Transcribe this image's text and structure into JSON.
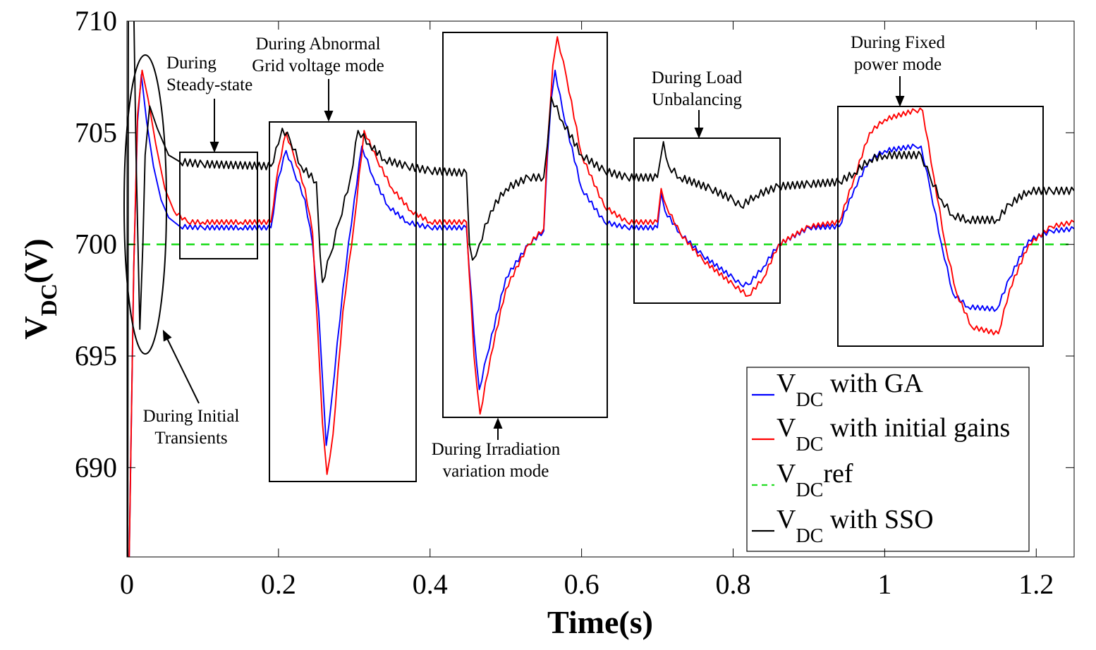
{
  "chart_data": {
    "type": "line",
    "title": "",
    "xlabel": "Time(s)",
    "ylabel": {
      "main": "V",
      "sub": "DC",
      "suffix": "(V)"
    },
    "xlim": [
      0,
      1.25
    ],
    "ylim": [
      686,
      710
    ],
    "xticks": [
      0,
      0.2,
      0.4,
      0.6,
      0.8,
      1,
      1.2
    ],
    "xtick_labels": [
      "0",
      "0.2",
      "0.4",
      "0.6",
      "0.8",
      "1",
      "1.2"
    ],
    "yticks": [
      690,
      695,
      700,
      705,
      710
    ],
    "ytick_labels": [
      "690",
      "695",
      "700",
      "705",
      "710"
    ],
    "grid": false,
    "legend_position": "bottom-right",
    "legend": [
      {
        "key": "ga",
        "main": "V",
        "sub": "DC",
        "rest": " with GA"
      },
      {
        "key": "init",
        "main": "V",
        "sub": "DC",
        "rest": " with initial gains"
      },
      {
        "key": "ref",
        "main": "V",
        "sub": "DC",
        "rest": "ref"
      },
      {
        "key": "sso",
        "main": "V",
        "sub": "DC",
        "rest": " with SSO"
      }
    ],
    "series": [
      {
        "key": "ga",
        "color": "#0000ff",
        "dash": "",
        "ripple": 0.1,
        "points": [
          [
            0,
            686
          ],
          [
            0.003,
            686
          ],
          [
            0.009,
            699
          ],
          [
            0.014,
            705.5
          ],
          [
            0.019,
            707.6
          ],
          [
            0.026,
            705.5
          ],
          [
            0.035,
            703.5
          ],
          [
            0.045,
            702
          ],
          [
            0.055,
            701.2
          ],
          [
            0.07,
            700.8
          ],
          [
            0.1,
            700.75
          ],
          [
            0.15,
            700.75
          ],
          [
            0.19,
            700.75
          ],
          [
            0.2,
            703
          ],
          [
            0.21,
            704.2
          ],
          [
            0.22,
            703.3
          ],
          [
            0.235,
            702
          ],
          [
            0.245,
            700
          ],
          [
            0.253,
            697
          ],
          [
            0.258,
            694
          ],
          [
            0.263,
            691
          ],
          [
            0.27,
            693
          ],
          [
            0.285,
            698
          ],
          [
            0.3,
            702
          ],
          [
            0.31,
            704.4
          ],
          [
            0.325,
            703
          ],
          [
            0.345,
            701.7
          ],
          [
            0.37,
            701
          ],
          [
            0.4,
            700.75
          ],
          [
            0.448,
            700.75
          ],
          [
            0.458,
            696
          ],
          [
            0.465,
            693.5
          ],
          [
            0.475,
            695
          ],
          [
            0.5,
            698.5
          ],
          [
            0.53,
            700
          ],
          [
            0.55,
            700.6
          ],
          [
            0.555,
            704
          ],
          [
            0.56,
            706.5
          ],
          [
            0.565,
            707.8
          ],
          [
            0.575,
            706
          ],
          [
            0.6,
            702.5
          ],
          [
            0.63,
            701
          ],
          [
            0.66,
            700.75
          ],
          [
            0.7,
            700.75
          ],
          [
            0.705,
            702.3
          ],
          [
            0.71,
            701.5
          ],
          [
            0.73,
            700.5
          ],
          [
            0.76,
            699.5
          ],
          [
            0.8,
            698.5
          ],
          [
            0.81,
            698.2
          ],
          [
            0.82,
            698.2
          ],
          [
            0.84,
            699
          ],
          [
            0.86,
            700
          ],
          [
            0.9,
            700.75
          ],
          [
            0.94,
            700.8
          ],
          [
            0.96,
            702.5
          ],
          [
            0.98,
            703.8
          ],
          [
            1,
            704.2
          ],
          [
            1.04,
            704.4
          ],
          [
            1.048,
            704.4
          ],
          [
            1.06,
            702.5
          ],
          [
            1.075,
            700
          ],
          [
            1.09,
            697.8
          ],
          [
            1.11,
            697.2
          ],
          [
            1.148,
            697.1
          ],
          [
            1.165,
            698.5
          ],
          [
            1.19,
            700.2
          ],
          [
            1.22,
            700.6
          ],
          [
            1.25,
            700.7
          ]
        ]
      },
      {
        "key": "init",
        "color": "#ff0000",
        "dash": "",
        "ripple": 0.1,
        "points": [
          [
            0,
            686
          ],
          [
            0.003,
            686
          ],
          [
            0.009,
            699
          ],
          [
            0.014,
            705.8
          ],
          [
            0.02,
            707.8
          ],
          [
            0.028,
            706.5
          ],
          [
            0.038,
            704.5
          ],
          [
            0.05,
            702.5
          ],
          [
            0.062,
            701.5
          ],
          [
            0.08,
            701
          ],
          [
            0.1,
            701
          ],
          [
            0.15,
            701
          ],
          [
            0.19,
            701
          ],
          [
            0.2,
            703.5
          ],
          [
            0.21,
            705
          ],
          [
            0.22,
            704
          ],
          [
            0.235,
            702.5
          ],
          [
            0.245,
            700.5
          ],
          [
            0.252,
            696
          ],
          [
            0.258,
            692
          ],
          [
            0.264,
            689.7
          ],
          [
            0.272,
            691.5
          ],
          [
            0.285,
            697
          ],
          [
            0.3,
            701
          ],
          [
            0.313,
            705.1
          ],
          [
            0.33,
            703.8
          ],
          [
            0.35,
            702.5
          ],
          [
            0.375,
            701.5
          ],
          [
            0.4,
            701
          ],
          [
            0.448,
            701
          ],
          [
            0.458,
            695
          ],
          [
            0.466,
            692.4
          ],
          [
            0.48,
            695
          ],
          [
            0.5,
            698
          ],
          [
            0.53,
            700
          ],
          [
            0.55,
            700.7
          ],
          [
            0.555,
            704.5
          ],
          [
            0.562,
            708
          ],
          [
            0.568,
            709.3
          ],
          [
            0.58,
            707.5
          ],
          [
            0.6,
            704
          ],
          [
            0.63,
            701.7
          ],
          [
            0.66,
            701
          ],
          [
            0.7,
            701
          ],
          [
            0.705,
            702.5
          ],
          [
            0.712,
            701.7
          ],
          [
            0.73,
            700.5
          ],
          [
            0.76,
            699.3
          ],
          [
            0.8,
            698.2
          ],
          [
            0.82,
            697.7
          ],
          [
            0.84,
            698.5
          ],
          [
            0.86,
            700
          ],
          [
            0.9,
            700.8
          ],
          [
            0.94,
            701
          ],
          [
            0.96,
            703
          ],
          [
            0.98,
            705
          ],
          [
            1,
            705.6
          ],
          [
            1.04,
            706
          ],
          [
            1.05,
            706
          ],
          [
            1.065,
            703
          ],
          [
            1.08,
            700
          ],
          [
            1.095,
            697.8
          ],
          [
            1.115,
            696.3
          ],
          [
            1.15,
            696
          ],
          [
            1.165,
            698
          ],
          [
            1.19,
            700
          ],
          [
            1.22,
            700.8
          ],
          [
            1.25,
            701
          ]
        ]
      },
      {
        "key": "ref",
        "color": "#22dd22",
        "dash": "12,9",
        "ripple": 0,
        "points": [
          [
            0,
            700
          ],
          [
            1.25,
            700
          ]
        ]
      },
      {
        "key": "sso",
        "color": "#000000",
        "dash": "",
        "ripple": 0.16,
        "points": [
          [
            0,
            686
          ],
          [
            0.001,
            686
          ],
          [
            0.002,
            715
          ],
          [
            0.007,
            715
          ],
          [
            0.012,
            704
          ],
          [
            0.017,
            696.2
          ],
          [
            0.021,
            700
          ],
          [
            0.024,
            704
          ],
          [
            0.03,
            706.2
          ],
          [
            0.04,
            705.2
          ],
          [
            0.055,
            704
          ],
          [
            0.07,
            703.7
          ],
          [
            0.1,
            703.6
          ],
          [
            0.19,
            703.5
          ],
          [
            0.2,
            704.5
          ],
          [
            0.205,
            705.2
          ],
          [
            0.215,
            704.7
          ],
          [
            0.23,
            703.5
          ],
          [
            0.25,
            702.8
          ],
          [
            0.255,
            699.5
          ],
          [
            0.258,
            698.3
          ],
          [
            0.268,
            699.5
          ],
          [
            0.28,
            701
          ],
          [
            0.295,
            703
          ],
          [
            0.305,
            705.1
          ],
          [
            0.32,
            704.5
          ],
          [
            0.34,
            703.8
          ],
          [
            0.37,
            703.5
          ],
          [
            0.4,
            703.3
          ],
          [
            0.448,
            703.2
          ],
          [
            0.452,
            700
          ],
          [
            0.456,
            699.3
          ],
          [
            0.465,
            700
          ],
          [
            0.48,
            701.5
          ],
          [
            0.5,
            702.5
          ],
          [
            0.53,
            703
          ],
          [
            0.55,
            703
          ],
          [
            0.555,
            704.5
          ],
          [
            0.56,
            706.6
          ],
          [
            0.575,
            705.5
          ],
          [
            0.6,
            704
          ],
          [
            0.63,
            703.3
          ],
          [
            0.66,
            703
          ],
          [
            0.7,
            703
          ],
          [
            0.705,
            704
          ],
          [
            0.708,
            704.6
          ],
          [
            0.715,
            703.5
          ],
          [
            0.73,
            703
          ],
          [
            0.77,
            702.5
          ],
          [
            0.8,
            702
          ],
          [
            0.81,
            701.7
          ],
          [
            0.83,
            702.2
          ],
          [
            0.86,
            702.6
          ],
          [
            0.9,
            702.7
          ],
          [
            0.94,
            702.8
          ],
          [
            0.96,
            703.2
          ],
          [
            0.98,
            703.8
          ],
          [
            1,
            704
          ],
          [
            1.048,
            704
          ],
          [
            1.06,
            703
          ],
          [
            1.075,
            702
          ],
          [
            1.09,
            701.3
          ],
          [
            1.11,
            701.1
          ],
          [
            1.148,
            701.1
          ],
          [
            1.165,
            701.8
          ],
          [
            1.19,
            702.4
          ],
          [
            1.22,
            702.4
          ],
          [
            1.25,
            702.4
          ]
        ]
      }
    ],
    "annotations": [
      {
        "lines": [
          "During",
          "Steady-state"
        ]
      },
      {
        "lines": [
          "During Abnormal",
          "Grid voltage mode"
        ]
      },
      {
        "lines": [
          "During Load",
          "Unbalancing"
        ]
      },
      {
        "lines": [
          "During Fixed",
          "power mode"
        ]
      },
      {
        "lines": [
          "During Initial",
          "Transients"
        ]
      },
      {
        "lines": [
          "During Irradiation",
          "variation mode"
        ]
      }
    ]
  }
}
